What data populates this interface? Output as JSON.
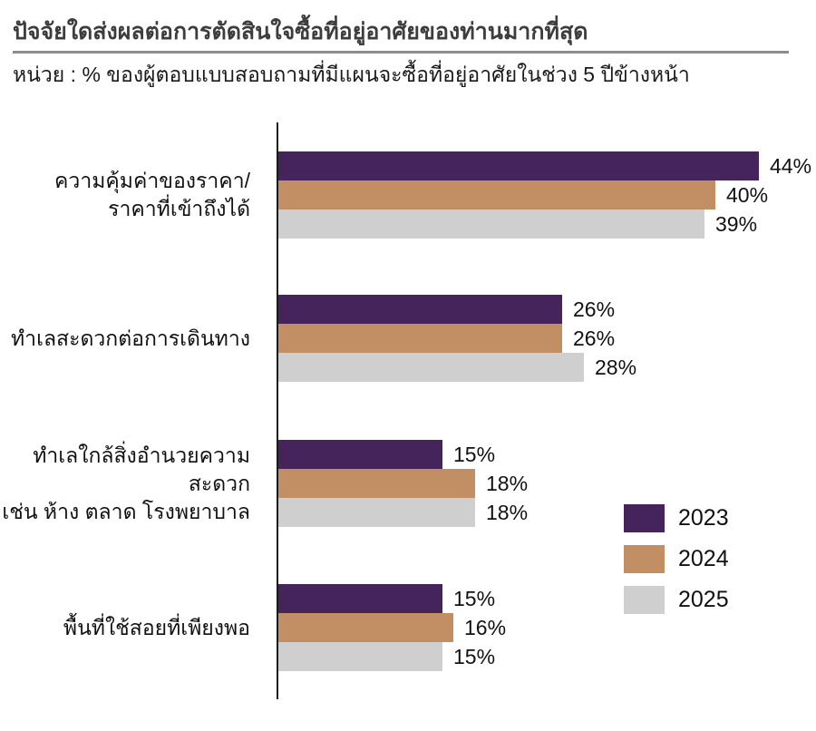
{
  "header": {
    "title": "ปัจจัยใดส่งผลต่อการตัดสินใจซื้อที่อยู่อาศัยของท่านมากที่สุด",
    "subtitle": "หน่วย : % ของผู้ตอบแบบสอบถามที่มีแผนจะซื้อที่อยู่อาศัยในช่วง 5 ปีข้างหน้า"
  },
  "chart_data": {
    "type": "bar",
    "orientation": "horizontal",
    "title": "ปัจจัยใดส่งผลต่อการตัดสินใจซื้อที่อยู่อาศัยของท่านมากที่สุด",
    "subtitle": "หน่วย : % ของผู้ตอบแบบสอบถามที่มีแผนจะซื้อที่อยู่อาศัยในช่วง 5 ปีข้างหน้า",
    "categories": [
      [
        "ความคุ้มค่าของราคา/",
        "ราคาที่เข้าถึงได้"
      ],
      [
        "ทำเลสะดวกต่อการเดินทาง"
      ],
      [
        "ทำเลใกล้สิ่งอำนวยความสะดวก",
        "เช่น ห้าง ตลาด โรงพยาบาล"
      ],
      [
        "พื้นที่ใช้สอยที่เพียงพอ"
      ]
    ],
    "series": [
      {
        "name": "2023",
        "color": "#45235B",
        "values": [
          44,
          26,
          15,
          15
        ]
      },
      {
        "name": "2024",
        "color": "#C28E63",
        "values": [
          40,
          26,
          18,
          16
        ]
      },
      {
        "name": "2025",
        "color": "#CFCFCF",
        "values": [
          39,
          28,
          18,
          15
        ]
      }
    ],
    "value_labels": [
      [
        "44%",
        "26%",
        "15%",
        "15%"
      ],
      [
        "40%",
        "26%",
        "18%",
        "16%"
      ],
      [
        "39%",
        "28%",
        "18%",
        "15%"
      ]
    ],
    "value_suffix": "%",
    "xlim": [
      0,
      47
    ],
    "grid": false,
    "legend_position": "right-bottom",
    "axis_color": "#1a1a1a",
    "title_color": "#3d3d3d",
    "rule_color": "#8c8c8c"
  }
}
